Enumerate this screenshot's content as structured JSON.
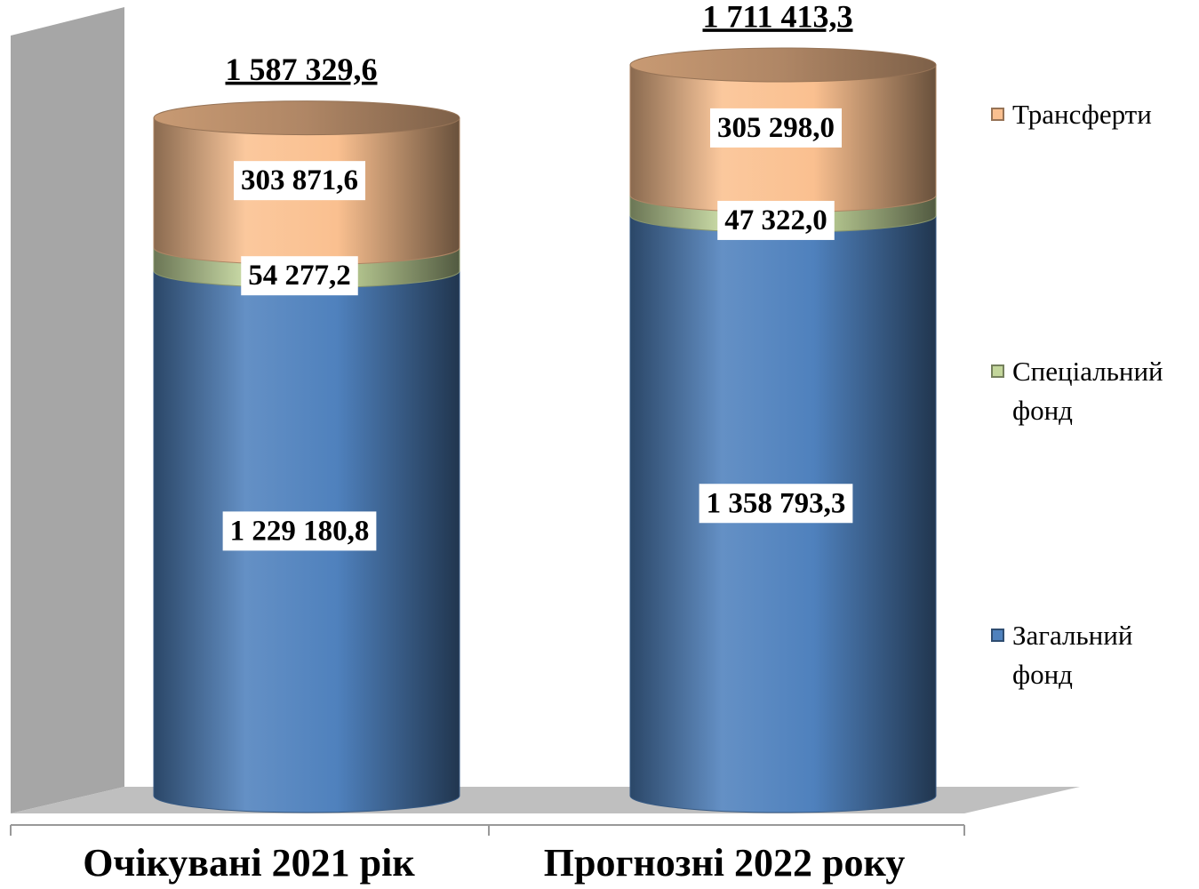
{
  "chart_data": {
    "type": "bar",
    "stacked": true,
    "shape": "cylinder",
    "categories": [
      "Очікувані 2021 рік",
      "Прогнозні 2022 року"
    ],
    "series": [
      {
        "name": "Загальний фонд",
        "color": "#4f81bd",
        "values": [
          1229180.8,
          1358793.3
        ],
        "value_labels": [
          "1 229 180,8",
          "1 358 793,3"
        ]
      },
      {
        "name": "Спеціальний фонд",
        "color": "#c3d69b",
        "values": [
          54277.2,
          47322.0
        ],
        "value_labels": [
          "54 277,2",
          "47 322,0"
        ]
      },
      {
        "name": "Трансферти",
        "color": "#fac090",
        "values": [
          303871.6,
          305298.0
        ],
        "value_labels": [
          "303 871,6",
          "305 298,0"
        ]
      }
    ],
    "totals": [
      1587329.6,
      1711413.3
    ],
    "total_labels": [
      "1 587 329,6",
      "1 711 413,3"
    ],
    "legend": "right",
    "grid": false
  }
}
